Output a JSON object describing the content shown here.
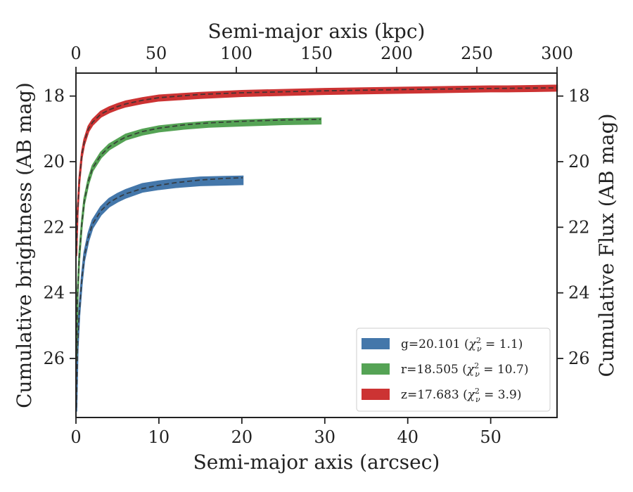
{
  "chart_data": {
    "type": "line",
    "xlabel": "Semi-major axis (arcsec)",
    "ylabel": "Cumulative brightness (AB mag)",
    "x2label": "Semi-major axis (kpc)",
    "y2label": "Cumulative Flux (AB mag)",
    "xlim": [
      0,
      58
    ],
    "ylim": [
      27.8,
      17.3
    ],
    "x2lim": [
      0,
      300
    ],
    "y_inverted": true,
    "xticks": [
      "0",
      "10",
      "20",
      "30",
      "40",
      "50"
    ],
    "xtick_values": [
      0,
      10,
      20,
      30,
      40,
      50
    ],
    "x2ticks": [
      "0",
      "50",
      "100",
      "150",
      "200",
      "250",
      "300"
    ],
    "x2tick_values": [
      0,
      50,
      100,
      150,
      200,
      250,
      300
    ],
    "yticks": [
      "18",
      "20",
      "22",
      "24",
      "26"
    ],
    "ytick_values": [
      18,
      20,
      22,
      24,
      26
    ],
    "grid": false,
    "legend_position": "bottom-right",
    "series": [
      {
        "name": "g=20.101 (χ²ν = 1.1)",
        "legend": "g=20.101 (",
        "legend_chi": "1.1",
        "color": "#4477aa",
        "band": 0.12,
        "x": [
          0.05,
          0.2,
          0.4,
          0.7,
          1.0,
          1.5,
          2.0,
          3.0,
          4.0,
          5.0,
          6.0,
          8.0,
          10.0,
          12.0,
          15.0,
          18.0,
          20.1
        ],
        "y": [
          27.5,
          25.6,
          24.6,
          23.6,
          22.9,
          22.3,
          21.9,
          21.5,
          21.25,
          21.1,
          20.98,
          20.8,
          20.72,
          20.66,
          20.6,
          20.58,
          20.57
        ],
        "model_x": [
          0.05,
          0.2,
          0.4,
          0.7,
          1.0,
          1.5,
          2.0,
          3.0,
          4.0,
          5.0,
          6.0,
          8.0,
          10.0,
          12.0,
          15.0,
          18.0,
          20.1
        ],
        "model_y": [
          27.5,
          25.6,
          24.6,
          23.6,
          22.9,
          22.3,
          21.9,
          21.5,
          21.25,
          21.1,
          20.98,
          20.82,
          20.72,
          20.64,
          20.56,
          20.51,
          20.49
        ]
      },
      {
        "name": "r=18.505 (χ²ν = 10.7)",
        "legend": "r=18.505 (",
        "legend_chi": "10.7",
        "color": "#55a355",
        "band": 0.08,
        "x": [
          0.05,
          0.2,
          0.4,
          0.7,
          1.0,
          1.5,
          2.0,
          3.0,
          4.0,
          5.0,
          6.0,
          8.0,
          10.0,
          13.0,
          16.0,
          20.0,
          25.0,
          29.5
        ],
        "y": [
          26.0,
          24.0,
          22.9,
          21.9,
          21.2,
          20.6,
          20.2,
          19.8,
          19.55,
          19.4,
          19.25,
          19.1,
          19.0,
          18.92,
          18.86,
          18.82,
          18.78,
          18.76
        ],
        "model_x": [
          0.05,
          0.2,
          0.4,
          0.7,
          1.0,
          1.5,
          2.0,
          3.0,
          4.0,
          5.0,
          6.0,
          8.0,
          10.0,
          13.0,
          16.0,
          20.0,
          25.0,
          29.5
        ],
        "model_y": [
          26.0,
          24.0,
          22.9,
          21.9,
          21.2,
          20.6,
          20.2,
          19.8,
          19.55,
          19.38,
          19.25,
          19.08,
          18.98,
          18.88,
          18.82,
          18.77,
          18.73,
          18.71
        ]
      },
      {
        "name": "z=17.683 (χ²ν = 3.9)",
        "legend": "z=17.683 (",
        "legend_chi": "3.9",
        "color": "#cc3333",
        "band": 0.08,
        "x": [
          0.05,
          0.2,
          0.4,
          0.7,
          1.0,
          1.5,
          2.0,
          3.0,
          4.0,
          5.0,
          6.0,
          8.0,
          10.0,
          15.0,
          20.0,
          30.0,
          40.0,
          50.0,
          52.0,
          58.0
        ],
        "y": [
          22.8,
          21.5,
          20.6,
          19.8,
          19.4,
          19.0,
          18.8,
          18.55,
          18.42,
          18.32,
          18.24,
          18.14,
          18.06,
          17.98,
          17.92,
          17.86,
          17.82,
          17.78,
          17.78,
          17.76
        ],
        "model_x": [
          0.05,
          0.2,
          0.4,
          0.7,
          1.0,
          1.5,
          2.0,
          3.0,
          4.0,
          5.0,
          6.0,
          8.0,
          10.0,
          15.0,
          20.0,
          30.0,
          40.0,
          50.0,
          58.0
        ],
        "model_y": [
          22.8,
          21.5,
          20.6,
          19.8,
          19.4,
          19.0,
          18.8,
          18.55,
          18.42,
          18.32,
          18.24,
          18.13,
          18.05,
          17.95,
          17.9,
          17.84,
          17.8,
          17.77,
          17.75
        ]
      }
    ]
  }
}
